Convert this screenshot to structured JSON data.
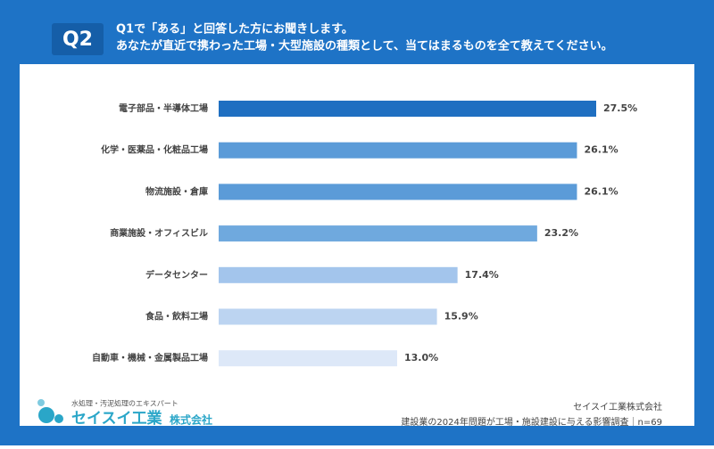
{
  "header": {
    "badge": "Q2",
    "question_lines": [
      "Q1で「ある」と回答した方にお聞きします。",
      "あなたが直近で携わった工場・大型施設の種類として、当てはまるものを全て教えてください。"
    ]
  },
  "chart_data": {
    "type": "bar",
    "orientation": "horizontal",
    "categories": [
      "電子部品・半導体工場",
      "化学・医薬品・化粧品工場",
      "物流施設・倉庫",
      "商業施設・オフィスビル",
      "データセンター",
      "食品・飲料工場",
      "自動車・機械・金属製品工場"
    ],
    "values": [
      27.5,
      26.1,
      26.1,
      23.2,
      17.4,
      15.9,
      13.0
    ],
    "value_labels": [
      "27.5%",
      "26.1%",
      "26.1%",
      "23.2%",
      "17.4%",
      "15.9%",
      "13.0%"
    ],
    "colors": [
      "#1f6fc1",
      "#5b9bd8",
      "#5b9bd8",
      "#6fa9de",
      "#a3c5ec",
      "#bcd4f1",
      "#dde8f8"
    ]
  },
  "footer": {
    "tagline": "水処理・汚泥処理のエキスパート",
    "logo_name": "セイスイ工業",
    "logo_suffix": "株式会社",
    "company": "セイスイ工業株式会社",
    "survey": "建設業の2024年問題が工場・施設建設に与える影響調査｜n=69"
  }
}
